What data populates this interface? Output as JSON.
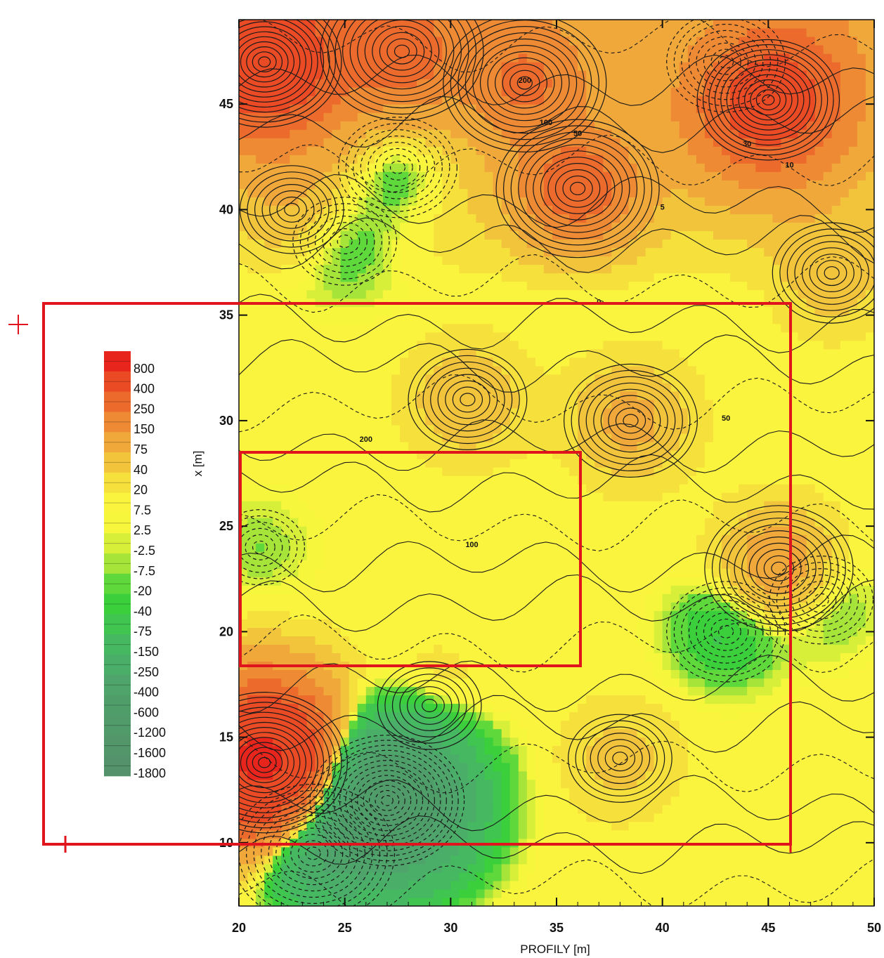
{
  "map": {
    "x_axis": {
      "title": "PROFILY [m]",
      "range": [
        20,
        50
      ],
      "ticks": [
        "20",
        "25",
        "30",
        "35",
        "40",
        "45",
        "50"
      ]
    },
    "y_axis": {
      "title": "x [m]",
      "range": [
        7,
        49
      ],
      "ticks": [
        "10",
        "15",
        "20",
        "25",
        "30",
        "35",
        "40",
        "45"
      ]
    },
    "legend": {
      "labels": [
        "800",
        "400",
        "250",
        "150",
        "75",
        "40",
        "20",
        "7.5",
        "2.5",
        "-2.5",
        "-7.5",
        "-20",
        "-40",
        "-75",
        "-150",
        "-250",
        "-400",
        "-600",
        "-1200",
        "-1600",
        "-1800"
      ],
      "colors": [
        "#e8251c",
        "#ea4a24",
        "#eb6a2c",
        "#ee8a34",
        "#f0a83a",
        "#f2c43c",
        "#f6e03c",
        "#fbf43e",
        "#f6f63c",
        "#d8ef3a",
        "#a6e43a",
        "#5ed83a",
        "#3bcf3c",
        "#3fc550",
        "#46b862",
        "#4aae68",
        "#4ea46a",
        "#4f9e6a",
        "#519a6a",
        "#52966a",
        "#53926a"
      ]
    },
    "contour_labels": [
      "200",
      "100",
      "50",
      "30",
      "10",
      "5",
      "0"
    ],
    "overlay_color": "#e0141c",
    "anomalies": [
      {
        "x": 21.2,
        "y": 47.0,
        "v": 600
      },
      {
        "x": 27.7,
        "y": 47.5,
        "v": 250
      },
      {
        "x": 33.5,
        "y": 46.0,
        "v": 200
      },
      {
        "x": 45.0,
        "y": 45.2,
        "v": 500
      },
      {
        "x": 36.0,
        "y": 41.0,
        "v": 300
      },
      {
        "x": 21.2,
        "y": 13.8,
        "v": 900
      },
      {
        "x": 38.5,
        "y": 30.0,
        "v": 80
      },
      {
        "x": 45.5,
        "y": 23.0,
        "v": 120
      },
      {
        "x": 29.0,
        "y": 16.5,
        "v": 40
      },
      {
        "x": 30.8,
        "y": 31.0,
        "v": 60
      },
      {
        "x": 38.0,
        "y": 14.0,
        "v": 40
      },
      {
        "x": 48.0,
        "y": 37.0,
        "v": 50
      },
      {
        "x": 22.5,
        "y": 40.0,
        "v": 40
      },
      {
        "x": 27.5,
        "y": 42.0,
        "v": -60
      },
      {
        "x": 25.0,
        "y": 38.5,
        "v": -40
      },
      {
        "x": 27.0,
        "y": 12.0,
        "v": -700
      },
      {
        "x": 23.5,
        "y": 9.5,
        "v": -200
      },
      {
        "x": 43.0,
        "y": 20.0,
        "v": -60
      },
      {
        "x": 47.5,
        "y": 21.5,
        "v": -40
      },
      {
        "x": 43.0,
        "y": 47.0,
        "v": -60
      },
      {
        "x": 21.0,
        "y": 24.0,
        "v": -20
      }
    ]
  }
}
